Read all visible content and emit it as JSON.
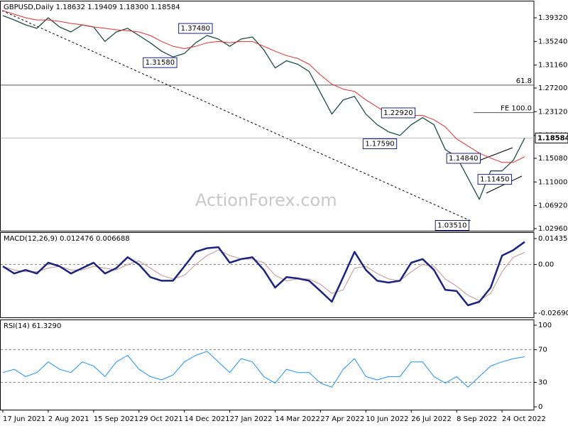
{
  "chart_data": [
    {
      "type": "line",
      "title": "GBPUSD,Daily  1.18632 1.19409 1.18300 1.18584",
      "watermark": "ActionForex.com",
      "xlim": [
        -1.5,
        374.5
      ],
      "ylim": [
        1.0259,
        1.4214
      ],
      "yticks": [
        {
          "value": 1.3932,
          "label": "1.39320"
        },
        {
          "value": 1.3524,
          "label": "1.35240"
        },
        {
          "value": 1.3116,
          "label": "1.31160"
        },
        {
          "value": 1.272,
          "label": "1.27200"
        },
        {
          "value": 1.2312,
          "label": "1.23120"
        },
        {
          "value": 1.1904,
          "label": "1.19040"
        },
        {
          "value": 1.1508,
          "label": "1.15080"
        },
        {
          "value": 1.11,
          "label": "1.11000"
        },
        {
          "value": 1.0692,
          "label": "1.06920"
        },
        {
          "value": 1.0296,
          "label": "1.02960"
        }
      ],
      "x": [
        0,
        8,
        16,
        24,
        32,
        40,
        48,
        56,
        64,
        72,
        80,
        88,
        96,
        104,
        112,
        120,
        128,
        136,
        144,
        152,
        160,
        168,
        176,
        184,
        192,
        200,
        208,
        216,
        224,
        232,
        240,
        248,
        256,
        264,
        272,
        280,
        288,
        296,
        304,
        312,
        320,
        328,
        336,
        344,
        352,
        360,
        368
      ],
      "series": [
        {
          "color": "#1c4d45",
          "width": 1.3,
          "values": [
            1.3969,
            1.3895,
            1.381,
            1.375,
            1.3932,
            1.3773,
            1.3687,
            1.381,
            1.3773,
            1.3524,
            1.3687,
            1.375,
            1.3626,
            1.35,
            1.3354,
            1.3256,
            1.3317,
            1.35,
            1.3626,
            1.3565,
            1.344,
            1.3565,
            1.36,
            1.338,
            1.3067,
            1.319,
            1.313,
            1.3006,
            1.2638,
            1.2271,
            1.2516,
            1.2577,
            1.2271,
            1.2087,
            1.1965,
            1.1904,
            1.2087,
            1.221,
            1.2087,
            1.1659,
            1.1536,
            1.1169,
            1.0802,
            1.1291,
            1.1291,
            1.1475,
            1.1858
          ]
        },
        {
          "color": "#e03030",
          "width": 1,
          "values": [
            1.4055,
            1.3994,
            1.3932,
            1.3895,
            1.3895,
            1.387,
            1.3834,
            1.381,
            1.3773,
            1.375,
            1.3724,
            1.371,
            1.3687,
            1.3626,
            1.3524,
            1.344,
            1.34,
            1.344,
            1.35,
            1.3524,
            1.35,
            1.3524,
            1.3524,
            1.344,
            1.3354,
            1.328,
            1.323,
            1.313,
            1.2945,
            1.2786,
            1.27,
            1.2663,
            1.2516,
            1.2393,
            1.2271,
            1.2234,
            1.2247,
            1.2247,
            1.2173,
            1.205,
            1.1842,
            1.172,
            1.1597,
            1.1512,
            1.1438,
            1.1438,
            1.1536
          ]
        }
      ],
      "hlines": [
        {
          "label": "61.8",
          "value": 1.2771,
          "x": -1.5,
          "color": "#555555"
        },
        {
          "label": "FE 100.0",
          "value": 1.2296,
          "x": 332,
          "color": "#555555"
        }
      ],
      "last_price": 1.18584,
      "annotations": [
        {
          "label": "1.37480",
          "x": 124,
          "y": 1.3748
        },
        {
          "label": "1.31580",
          "x": 99,
          "y": 1.3158
        },
        {
          "label": "1.22920",
          "x": 267,
          "y": 1.2292
        },
        {
          "label": "1.17590",
          "x": 254,
          "y": 1.1759
        },
        {
          "label": "1.14840",
          "x": 313,
          "y": 1.1508
        },
        {
          "label": "1.11450",
          "x": 335,
          "y": 1.1145
        },
        {
          "label": "1.03510",
          "x": 305,
          "y": 1.0351
        }
      ]
    },
    {
      "type": "line",
      "title": "MACD(12,26,9) 0.012476 0.006688",
      "xlim": [
        -1.5,
        374.5
      ],
      "ylim": [
        -0.02926,
        0.01749
      ],
      "yticks": [
        0.014351,
        {
          "value": 0,
          "label": "0.00"
        },
        -0.026904
      ],
      "levels": [
        0
      ],
      "x": [
        0,
        8,
        16,
        24,
        32,
        40,
        48,
        56,
        64,
        72,
        80,
        88,
        96,
        104,
        112,
        120,
        128,
        136,
        144,
        152,
        160,
        168,
        176,
        184,
        192,
        200,
        208,
        216,
        224,
        232,
        240,
        248,
        256,
        264,
        272,
        280,
        288,
        296,
        304,
        312,
        320,
        328,
        336,
        344,
        352,
        360,
        368
      ],
      "series": [
        {
          "color": "#c89090",
          "width": 1,
          "values": [
            -0.001,
            -0.003,
            -0.004,
            -0.004,
            -0.002,
            -0.001,
            -0.003,
            -0.003,
            -0.001,
            -0.002,
            -0.003,
            0,
            0.002,
            -0.002,
            -0.006,
            -0.008,
            -0.006,
            0,
            0.005,
            0.008,
            0.005,
            0.003,
            0.003,
            0.001,
            -0.006,
            -0.009,
            -0.008,
            -0.008,
            -0.011,
            -0.016,
            -0.014,
            -0.002,
            -0.001,
            -0.005,
            -0.008,
            -0.009,
            -0.004,
            0,
            -0.001,
            -0.008,
            -0.012,
            -0.017,
            -0.02,
            -0.016,
            -0.004,
            0.004,
            0.0067
          ]
        },
        {
          "color": "#1a237e",
          "width": 2.5,
          "values": [
            -0.001,
            -0.005,
            -0.003,
            -0.005,
            0.001,
            -0.001,
            -0.005,
            -0.002,
            0.001,
            -0.005,
            -0.002,
            0.004,
            0,
            -0.007,
            -0.009,
            -0.009,
            -0.001,
            0.007,
            0.009,
            0.0096,
            0.001,
            0.003,
            0.004,
            -0.003,
            -0.0128,
            -0.007,
            -0.0077,
            -0.009,
            -0.0147,
            -0.0206,
            -0.007,
            0.007,
            -0.003,
            -0.009,
            -0.01,
            -0.009,
            0.001,
            0.003,
            -0.003,
            -0.014,
            -0.0147,
            -0.0226,
            -0.0206,
            -0.0128,
            0.0049,
            0.008,
            0.0125
          ]
        }
      ]
    },
    {
      "type": "line",
      "title": "RSI(14) 61.3290",
      "xlim": [
        -1.5,
        374.5
      ],
      "ylim": [
        -3.5,
        106.1
      ],
      "yticks": [
        100,
        70,
        30,
        0
      ],
      "levels": [
        70,
        30
      ],
      "xticks": [
        {
          "value": 0,
          "label": "17 Jun 2021"
        },
        {
          "value": 32,
          "label": "2 Aug 2021"
        },
        {
          "value": 64,
          "label": "15 Sep 2021"
        },
        {
          "value": 96,
          "label": "29 Oct 2021"
        },
        {
          "value": 128,
          "label": "14 Dec 2021"
        },
        {
          "value": 160,
          "label": "27 Jan 2022"
        },
        {
          "value": 192,
          "label": "14 Mar 2022"
        },
        {
          "value": 224,
          "label": "27 Apr 2022"
        },
        {
          "value": 256,
          "label": "10 Jun 2022"
        },
        {
          "value": 288,
          "label": "26 Jul 2022"
        },
        {
          "value": 320,
          "label": "8 Sep 2022"
        },
        {
          "value": 352,
          "label": "24 Oct 2022"
        }
      ],
      "x": [
        0,
        8,
        16,
        24,
        32,
        40,
        48,
        56,
        64,
        72,
        80,
        88,
        96,
        104,
        112,
        120,
        128,
        136,
        144,
        152,
        160,
        168,
        176,
        184,
        192,
        200,
        208,
        216,
        224,
        232,
        240,
        248,
        256,
        264,
        272,
        280,
        288,
        296,
        304,
        312,
        320,
        328,
        336,
        344,
        352,
        360,
        368
      ],
      "series": [
        {
          "color": "#1e90ff",
          "width": 1,
          "values": [
            42,
            46,
            37,
            42,
            55,
            46,
            42,
            55,
            50,
            37,
            55,
            63,
            46,
            37,
            33,
            39,
            55,
            63,
            68,
            55,
            42,
            59,
            55,
            37,
            29,
            46,
            42,
            42,
            29,
            24,
            46,
            59,
            37,
            33,
            37,
            37,
            55,
            55,
            37,
            29,
            37,
            24,
            37,
            50,
            55,
            59,
            61.3
          ]
        }
      ]
    }
  ]
}
